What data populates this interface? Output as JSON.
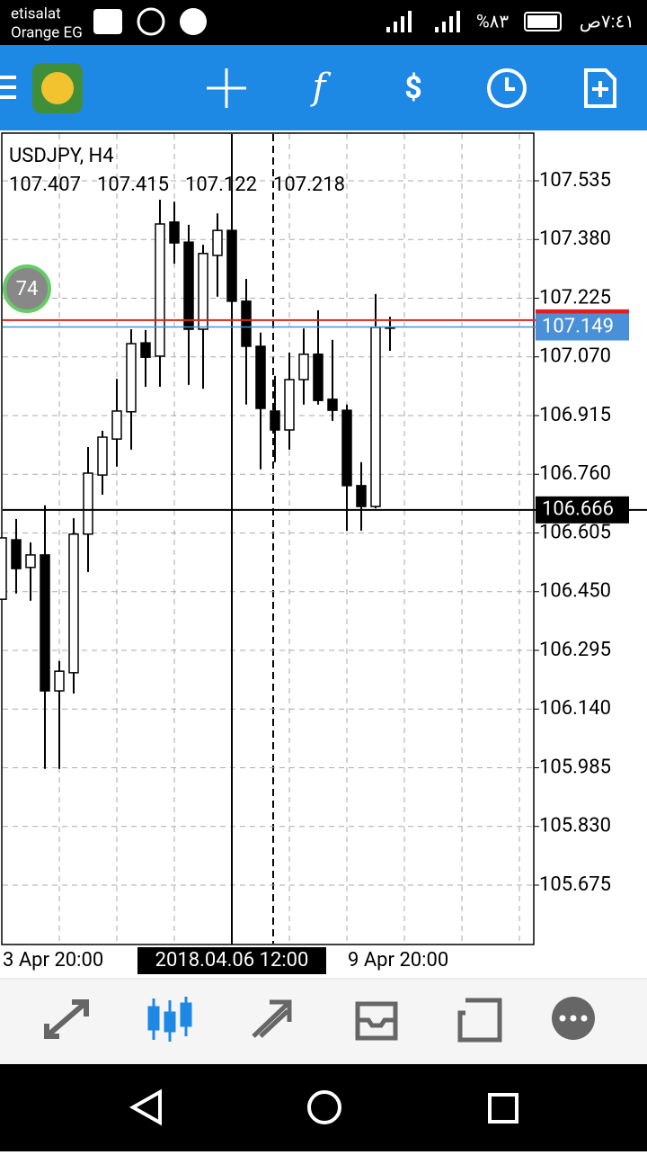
{
  "status_bar": {
    "carrier": "etisalat",
    "network": "Orange EG",
    "battery": "%٨٣",
    "time": "٧:٤١ص"
  },
  "chart": {
    "symbol": "USDJPY, H4",
    "ohlc_header": [
      107.407,
      107.415,
      107.122,
      107.218
    ],
    "badge": 74,
    "candles": [
      {
        "open": 106.43,
        "high": 106.592,
        "low": 106.43,
        "close": 106.592
      },
      {
        "open": 106.587,
        "high": 106.642,
        "low": 106.445,
        "close": 106.511
      },
      {
        "open": 106.514,
        "high": 106.58,
        "low": 106.426,
        "close": 106.547
      },
      {
        "open": 106.547,
        "high": 106.678,
        "low": 105.982,
        "close": 106.188
      },
      {
        "open": 106.188,
        "high": 106.267,
        "low": 105.982,
        "close": 106.24
      },
      {
        "open": 106.236,
        "high": 106.644,
        "low": 106.181,
        "close": 106.602
      },
      {
        "open": 106.602,
        "high": 106.832,
        "low": 106.502,
        "close": 106.763
      },
      {
        "open": 106.758,
        "high": 106.875,
        "low": 106.706,
        "close": 106.858
      },
      {
        "open": 106.853,
        "high": 107.012,
        "low": 106.78,
        "close": 106.927
      },
      {
        "open": 106.925,
        "high": 107.143,
        "low": 106.825,
        "close": 107.105
      },
      {
        "open": 107.107,
        "high": 107.141,
        "low": 106.991,
        "close": 107.069
      },
      {
        "open": 107.072,
        "high": 107.485,
        "low": 106.991,
        "close": 107.421
      },
      {
        "open": 107.426,
        "high": 107.48,
        "low": 107.316,
        "close": 107.371
      },
      {
        "open": 107.373,
        "high": 107.419,
        "low": 106.996,
        "close": 107.143
      },
      {
        "open": 107.143,
        "high": 107.366,
        "low": 106.986,
        "close": 107.343
      },
      {
        "open": 107.338,
        "high": 107.449,
        "low": 107.229,
        "close": 107.404
      },
      {
        "open": 107.404,
        "high": 107.423,
        "low": 107.062,
        "close": 107.217
      },
      {
        "open": 107.217,
        "high": 107.276,
        "low": 106.944,
        "close": 107.098
      },
      {
        "open": 107.098,
        "high": 107.134,
        "low": 106.773,
        "close": 106.934
      },
      {
        "open": 106.927,
        "high": 107.02,
        "low": 106.792,
        "close": 106.877
      },
      {
        "open": 106.877,
        "high": 107.081,
        "low": 106.825,
        "close": 107.01
      },
      {
        "open": 107.01,
        "high": 107.145,
        "low": 106.944,
        "close": 107.077
      },
      {
        "open": 107.077,
        "high": 107.193,
        "low": 106.944,
        "close": 106.955
      },
      {
        "open": 106.958,
        "high": 107.115,
        "low": 106.901,
        "close": 106.929
      },
      {
        "open": 106.929,
        "high": 106.944,
        "low": 106.611,
        "close": 106.73
      },
      {
        "open": 106.73,
        "high": 106.792,
        "low": 106.611,
        "close": 106.675
      },
      {
        "open": 106.675,
        "high": 107.236,
        "low": 106.67,
        "close": 107.148
      },
      {
        "open": 107.148,
        "high": 107.176,
        "low": 107.086,
        "close": 107.148
      }
    ],
    "yticks": [
      {
        "value": 107.535,
        "label": "107.535"
      },
      {
        "value": 107.38,
        "label": "107.380"
      },
      {
        "value": 107.225,
        "label": "107.225"
      },
      {
        "value": 107.07,
        "label": "107.070"
      },
      {
        "value": 106.915,
        "label": "106.915"
      },
      {
        "value": 106.76,
        "label": "106.760"
      },
      {
        "value": 106.605,
        "label": "106.605"
      },
      {
        "value": 106.45,
        "label": "106.450"
      },
      {
        "value": 106.295,
        "label": "106.295"
      },
      {
        "value": 106.14,
        "label": "106.140"
      },
      {
        "value": 105.985,
        "label": "105.985"
      },
      {
        "value": 105.83,
        "label": "105.830"
      },
      {
        "value": 105.675,
        "label": "105.675"
      }
    ],
    "ask_line": 107.167,
    "bid": 107.149,
    "crosshair_price": 106.666,
    "time_labels": [
      "3 Apr 20:00",
      "2018.04.06 12:00",
      "9 Apr 20:00"
    ]
  }
}
